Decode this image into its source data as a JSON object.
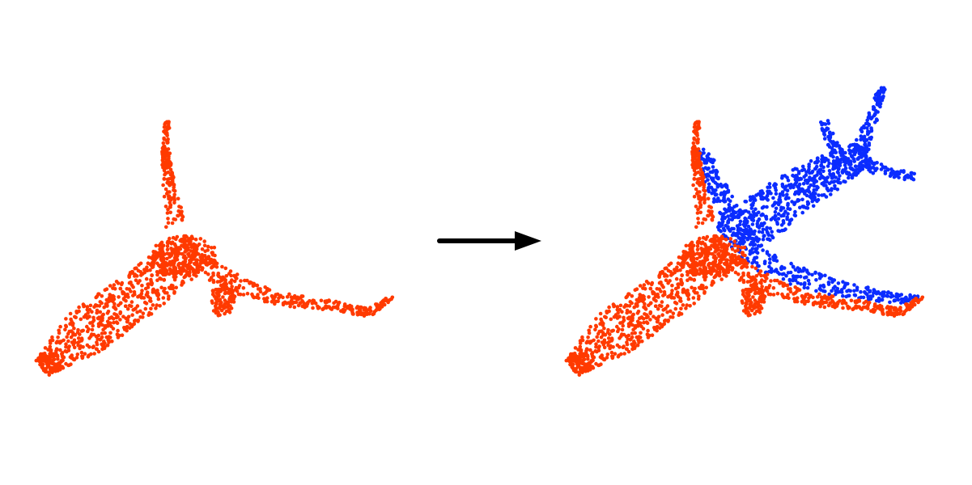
{
  "figure": {
    "colors": {
      "partial": "#ff3a00",
      "completed": "#0b2cff",
      "arrow": "#000000",
      "background": "#ffffff"
    },
    "panels": [
      {
        "id": "input-point-cloud",
        "point_sets": [
          "partial"
        ]
      },
      {
        "id": "output-point-cloud",
        "point_sets": [
          "partial",
          "completed"
        ]
      }
    ],
    "arrow": {
      "direction": "right",
      "icon": "right-arrow-icon"
    }
  }
}
